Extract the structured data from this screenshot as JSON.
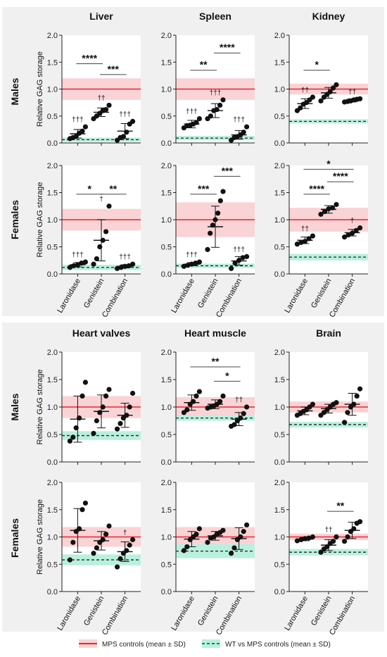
{
  "groups": [
    "Laronidase",
    "Genistein",
    "Combination"
  ],
  "row_labels": [
    "Males",
    "Females",
    "Males",
    "Females"
  ],
  "ylabel": "Relative GAG storage",
  "yticks": [
    "0.0",
    "0.5",
    "1.0",
    "1.5",
    "2.0"
  ],
  "legend": {
    "mps": "MPS controls (mean ± SD)",
    "wt": "WT vs MPS controls (mean ± SD)"
  },
  "colors": {
    "mps_line": "#e8262c",
    "mps_band": "#f9d3d5",
    "wt_line": "#1a8a4a",
    "wt_band": "#b9f0dd",
    "panel_bg": "#f0f0f0"
  },
  "chart_data": [
    {
      "type": "scatter",
      "title": "Liver",
      "sex": "Males",
      "ylim": [
        0,
        2
      ],
      "mps": {
        "mean": 1.0,
        "sd": 0.2
      },
      "wt": {
        "mean": 0.06,
        "sd": 0.04
      },
      "series": [
        {
          "name": "Laronidase",
          "points": [
            0.08,
            0.1,
            0.12,
            0.18,
            0.22,
            0.3
          ],
          "mean": 0.17,
          "sd": 0.08,
          "annotation": "†††"
        },
        {
          "name": "Genistein",
          "points": [
            0.45,
            0.5,
            0.55,
            0.6,
            0.62,
            0.7
          ],
          "mean": 0.57,
          "sd": 0.08,
          "annotation": "††"
        },
        {
          "name": "Combination",
          "points": [
            0.05,
            0.1,
            0.12,
            0.2,
            0.35,
            0.4
          ],
          "mean": 0.22,
          "sd": 0.14,
          "annotation": "†††"
        }
      ],
      "comparisons": [
        {
          "from": 0,
          "to": 1,
          "label": "****",
          "y": 1.47
        },
        {
          "from": 1,
          "to": 2,
          "label": "***",
          "y": 1.27
        }
      ]
    },
    {
      "type": "scatter",
      "title": "Spleen",
      "sex": "Males",
      "ylim": [
        0,
        2
      ],
      "mps": {
        "mean": 1.0,
        "sd": 0.2
      },
      "wt": {
        "mean": 0.09,
        "sd": 0.04
      },
      "series": [
        {
          "name": "Laronidase",
          "points": [
            0.28,
            0.32,
            0.33,
            0.35,
            0.38,
            0.45
          ],
          "mean": 0.35,
          "sd": 0.07,
          "annotation": "†††"
        },
        {
          "name": "Genistein",
          "points": [
            0.45,
            0.5,
            0.6,
            0.62,
            0.7,
            0.8
          ],
          "mean": 0.6,
          "sd": 0.13,
          "annotation": "†††"
        },
        {
          "name": "Combination",
          "points": [
            0.05,
            0.1,
            0.12,
            0.15,
            0.2,
            0.3
          ],
          "mean": 0.15,
          "sd": 0.08,
          "annotation": "†††"
        }
      ],
      "comparisons": [
        {
          "from": 0,
          "to": 1,
          "label": "**",
          "y": 1.35
        },
        {
          "from": 1,
          "to": 2,
          "label": "****",
          "y": 1.67
        }
      ]
    },
    {
      "type": "scatter",
      "title": "Kidney",
      "sex": "Males",
      "ylim": [
        0,
        2
      ],
      "mps": {
        "mean": 1.0,
        "sd": 0.1
      },
      "wt": {
        "mean": 0.4,
        "sd": 0.04
      },
      "series": [
        {
          "name": "Laronidase",
          "points": [
            0.6,
            0.65,
            0.72,
            0.75,
            0.8,
            0.85
          ],
          "mean": 0.73,
          "sd": 0.09,
          "annotation": "††"
        },
        {
          "name": "Genistein",
          "points": [
            0.78,
            0.85,
            0.9,
            0.95,
            1.02,
            1.08
          ],
          "mean": 0.93,
          "sd": 0.1,
          "annotation": ""
        },
        {
          "name": "Combination",
          "points": [
            0.76,
            0.77,
            0.78,
            0.8,
            0.81,
            0.82
          ],
          "mean": 0.79,
          "sd": 0.03,
          "annotation": "††"
        }
      ],
      "comparisons": [
        {
          "from": 0,
          "to": 1,
          "label": "*",
          "y": 1.35
        }
      ]
    },
    {
      "type": "scatter",
      "title": "",
      "sex": "Females",
      "ylim": [
        0,
        2
      ],
      "mps": {
        "mean": 1.0,
        "sd": 0.2
      },
      "wt": {
        "mean": 0.12,
        "sd": 0.05
      },
      "series": [
        {
          "name": "Laronidase",
          "points": [
            0.12,
            0.15,
            0.17,
            0.2,
            0.22
          ],
          "mean": 0.17,
          "sd": 0.04,
          "annotation": "†††"
        },
        {
          "name": "Genistein",
          "points": [
            0.18,
            0.28,
            0.5,
            0.62,
            0.78,
            1.25
          ],
          "mean": 0.62,
          "sd": 0.38,
          "annotation": "†"
        },
        {
          "name": "Combination",
          "points": [
            0.1,
            0.12,
            0.14,
            0.15,
            0.18
          ],
          "mean": 0.14,
          "sd": 0.03,
          "annotation": "†††"
        }
      ],
      "comparisons": [
        {
          "from": 0,
          "to": 1,
          "label": "*",
          "y": 1.47
        },
        {
          "from": 1,
          "to": 2,
          "label": "**",
          "y": 1.47
        }
      ]
    },
    {
      "type": "scatter",
      "title": "",
      "sex": "Females",
      "ylim": [
        0,
        2
      ],
      "mps": {
        "mean": 1.0,
        "sd": 0.32
      },
      "wt": {
        "mean": 0.15,
        "sd": 0.04
      },
      "series": [
        {
          "name": "Laronidase",
          "points": [
            0.14,
            0.16,
            0.18,
            0.2,
            0.22
          ],
          "mean": 0.18,
          "sd": 0.03,
          "annotation": "†††"
        },
        {
          "name": "Genistein",
          "points": [
            0.45,
            0.75,
            0.9,
            1.0,
            1.12,
            1.35,
            1.52
          ],
          "mean": 0.87,
          "sd": 0.38,
          "annotation": ""
        },
        {
          "name": "Combination",
          "points": [
            0.1,
            0.2,
            0.25,
            0.3,
            0.32
          ],
          "mean": 0.24,
          "sd": 0.08,
          "annotation": "†††"
        }
      ],
      "comparisons": [
        {
          "from": 0,
          "to": 1,
          "label": "***",
          "y": 1.47
        },
        {
          "from": 1,
          "to": 2,
          "label": "***",
          "y": 1.8
        }
      ]
    },
    {
      "type": "scatter",
      "title": "",
      "sex": "Females",
      "ylim": [
        0,
        2
      ],
      "mps": {
        "mean": 1.0,
        "sd": 0.22
      },
      "wt": {
        "mean": 0.31,
        "sd": 0.06
      },
      "series": [
        {
          "name": "Laronidase",
          "points": [
            0.55,
            0.58,
            0.6,
            0.65,
            0.7
          ],
          "mean": 0.62,
          "sd": 0.06,
          "annotation": "††"
        },
        {
          "name": "Genistein",
          "points": [
            1.1,
            1.15,
            1.2,
            1.22,
            1.28
          ],
          "mean": 1.19,
          "sd": 0.07,
          "annotation": ""
        },
        {
          "name": "Combination",
          "points": [
            0.68,
            0.72,
            0.75,
            0.8,
            0.85
          ],
          "mean": 0.76,
          "sd": 0.06,
          "annotation": "†"
        }
      ],
      "comparisons": [
        {
          "from": 0,
          "to": 2,
          "label": "*",
          "y": 1.93
        },
        {
          "from": 0,
          "to": 1,
          "label": "****",
          "y": 1.47
        },
        {
          "from": 1,
          "to": 2,
          "label": "****",
          "y": 1.7
        }
      ]
    },
    {
      "type": "scatter",
      "title": "Heart valves",
      "sex": "Males",
      "ylim": [
        0,
        2
      ],
      "mps": {
        "mean": 1.0,
        "sd": 0.2
      },
      "wt": {
        "mean": 0.48,
        "sd": 0.08
      },
      "series": [
        {
          "name": "Laronidase",
          "points": [
            0.38,
            0.45,
            0.62,
            0.8,
            1.2,
            1.45
          ],
          "mean": 0.78,
          "sd": 0.42,
          "annotation": ""
        },
        {
          "name": "Genistein",
          "points": [
            0.52,
            0.75,
            0.9,
            1.0,
            1.2,
            1.32
          ],
          "mean": 0.92,
          "sd": 0.3,
          "annotation": ""
        },
        {
          "name": "Combination",
          "points": [
            0.6,
            0.7,
            0.8,
            0.85,
            1.0,
            1.25
          ],
          "mean": 0.85,
          "sd": 0.22,
          "annotation": ""
        }
      ],
      "comparisons": []
    },
    {
      "type": "scatter",
      "title": "Heart muscle",
      "sex": "Males",
      "ylim": [
        0,
        2
      ],
      "mps": {
        "mean": 1.0,
        "sd": 0.18
      },
      "wt": {
        "mean": 0.8,
        "sd": 0.05
      },
      "series": [
        {
          "name": "Laronidase",
          "points": [
            0.9,
            0.95,
            1.05,
            1.1,
            1.2,
            1.28
          ],
          "mean": 1.08,
          "sd": 0.14,
          "annotation": ""
        },
        {
          "name": "Genistein",
          "points": [
            0.98,
            1.0,
            1.02,
            1.05,
            1.1,
            1.2
          ],
          "mean": 1.05,
          "sd": 0.08,
          "annotation": ""
        },
        {
          "name": "Combination",
          "points": [
            0.65,
            0.68,
            0.75,
            0.8,
            0.88,
            1.0
          ],
          "mean": 0.78,
          "sd": 0.12,
          "annotation": "††"
        }
      ],
      "comparisons": [
        {
          "from": 0,
          "to": 2,
          "label": "**",
          "y": 1.73
        },
        {
          "from": 1,
          "to": 2,
          "label": "*",
          "y": 1.47
        }
      ]
    },
    {
      "type": "scatter",
      "title": "Brain",
      "sex": "Males",
      "ylim": [
        0,
        2
      ],
      "mps": {
        "mean": 1.0,
        "sd": 0.1
      },
      "wt": {
        "mean": 0.68,
        "sd": 0.05
      },
      "series": [
        {
          "name": "Laronidase",
          "points": [
            0.85,
            0.88,
            0.92,
            0.95,
            1.0,
            1.05
          ],
          "mean": 0.93,
          "sd": 0.07,
          "annotation": ""
        },
        {
          "name": "Genistein",
          "points": [
            0.85,
            0.9,
            0.95,
            1.0,
            1.05,
            1.08
          ],
          "mean": 0.97,
          "sd": 0.08,
          "annotation": ""
        },
        {
          "name": "Combination",
          "points": [
            0.72,
            0.9,
            1.0,
            1.05,
            1.2,
            1.33
          ],
          "mean": 1.05,
          "sd": 0.2,
          "annotation": ""
        }
      ],
      "comparisons": []
    },
    {
      "type": "scatter",
      "title": "",
      "sex": "Females",
      "ylim": [
        0,
        2
      ],
      "mps": {
        "mean": 1.0,
        "sd": 0.18
      },
      "wt": {
        "mean": 0.58,
        "sd": 0.1
      },
      "series": [
        {
          "name": "Laronidase",
          "points": [
            0.58,
            0.9,
            1.1,
            1.15,
            1.5,
            1.62
          ],
          "mean": 1.12,
          "sd": 0.4,
          "annotation": ""
        },
        {
          "name": "Genistein",
          "points": [
            0.7,
            0.8,
            0.9,
            0.95,
            1.05,
            1.2
          ],
          "mean": 0.93,
          "sd": 0.17,
          "annotation": ""
        },
        {
          "name": "Combination",
          "points": [
            0.45,
            0.6,
            0.7,
            0.75,
            0.85,
            0.95
          ],
          "mean": 0.73,
          "sd": 0.18,
          "annotation": "†"
        }
      ],
      "comparisons": []
    },
    {
      "type": "scatter",
      "title": "",
      "sex": "Females",
      "ylim": [
        0,
        2
      ],
      "mps": {
        "mean": 1.0,
        "sd": 0.18
      },
      "wt": {
        "mean": 0.74,
        "sd": 0.13
      },
      "series": [
        {
          "name": "Laronidase",
          "points": [
            0.75,
            0.82,
            0.95,
            1.0,
            1.05,
            1.15
          ],
          "mean": 0.96,
          "sd": 0.14,
          "annotation": ""
        },
        {
          "name": "Genistein",
          "points": [
            0.9,
            0.98,
            1.0,
            1.05,
            1.08,
            1.12
          ],
          "mean": 1.02,
          "sd": 0.08,
          "annotation": ""
        },
        {
          "name": "Combination",
          "points": [
            0.7,
            0.8,
            0.95,
            1.0,
            1.1,
            1.22
          ],
          "mean": 0.97,
          "sd": 0.2,
          "annotation": ""
        }
      ],
      "comparisons": []
    },
    {
      "type": "scatter",
      "title": "",
      "sex": "Females",
      "ylim": [
        0,
        2
      ],
      "mps": {
        "mean": 1.0,
        "sd": 0.06
      },
      "wt": {
        "mean": 0.72,
        "sd": 0.06
      },
      "series": [
        {
          "name": "Laronidase",
          "points": [
            0.93,
            0.95,
            0.97,
            0.98,
            1.0
          ],
          "mean": 0.96,
          "sd": 0.03,
          "annotation": ""
        },
        {
          "name": "Genistein",
          "points": [
            0.72,
            0.78,
            0.82,
            0.88,
            0.92,
            1.0
          ],
          "mean": 0.85,
          "sd": 0.1,
          "annotation": "††"
        },
        {
          "name": "Combination",
          "points": [
            0.92,
            1.0,
            1.1,
            1.15,
            1.25,
            1.28
          ],
          "mean": 1.12,
          "sd": 0.15,
          "annotation": ""
        }
      ],
      "comparisons": [
        {
          "from": 1,
          "to": 2,
          "label": "**",
          "y": 1.47
        }
      ]
    }
  ]
}
